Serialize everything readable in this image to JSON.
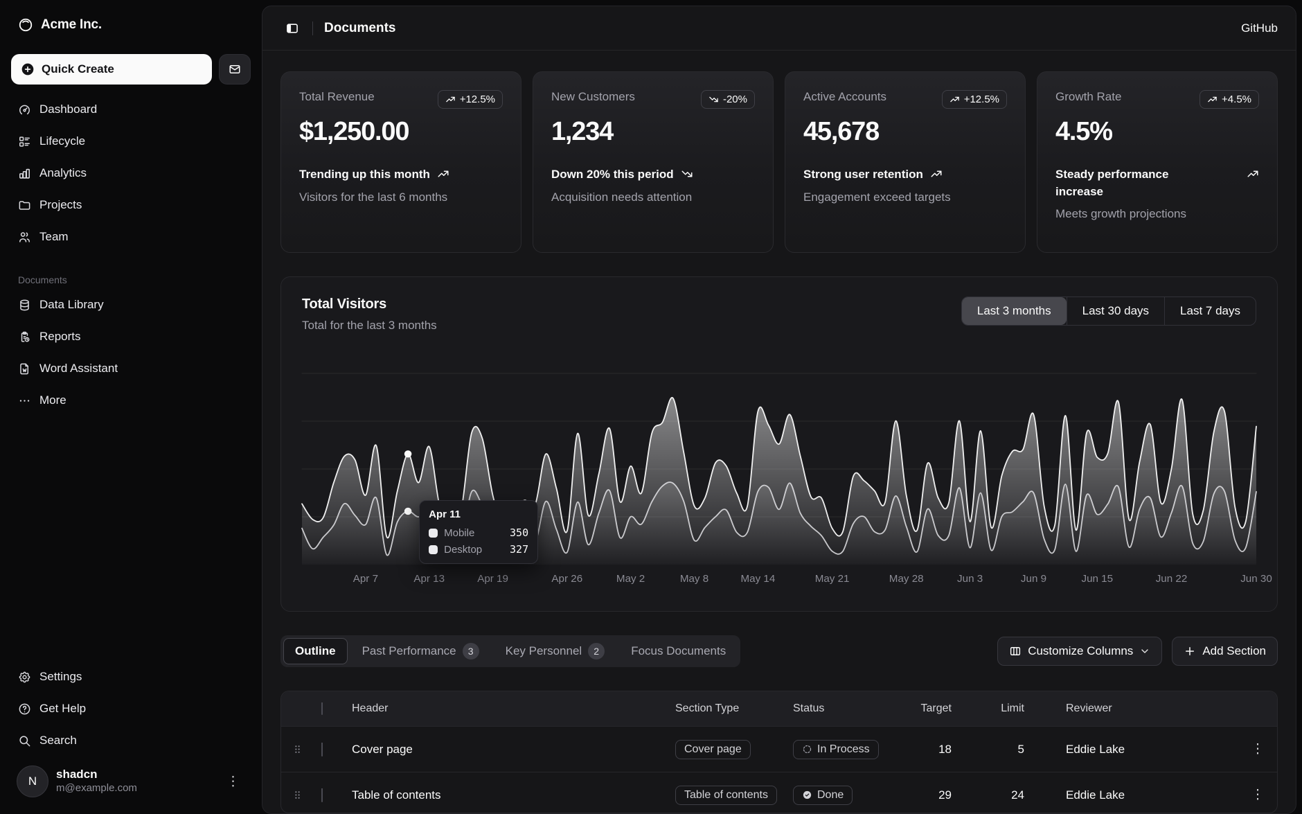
{
  "brand": {
    "name": "Acme Inc."
  },
  "sidebar": {
    "quick_create_label": "Quick Create",
    "nav": [
      {
        "label": "Dashboard"
      },
      {
        "label": "Lifecycle"
      },
      {
        "label": "Analytics"
      },
      {
        "label": "Projects"
      },
      {
        "label": "Team"
      }
    ],
    "section_label": "Documents",
    "documents_nav": [
      {
        "label": "Data Library"
      },
      {
        "label": "Reports"
      },
      {
        "label": "Word Assistant"
      },
      {
        "label": "More"
      }
    ],
    "secondary_nav": [
      {
        "label": "Settings"
      },
      {
        "label": "Get Help"
      },
      {
        "label": "Search"
      }
    ],
    "user": {
      "name": "shadcn",
      "email": "m@example.com",
      "initial": "N"
    }
  },
  "header": {
    "title": "Documents",
    "github_label": "GitHub"
  },
  "stats": [
    {
      "label": "Total Revenue",
      "value": "$1,250.00",
      "badge": "+12.5%",
      "trend": "up",
      "footer_title": "Trending up this month",
      "footer_sub": "Visitors for the last 6 months"
    },
    {
      "label": "New Customers",
      "value": "1,234",
      "badge": "-20%",
      "trend": "down",
      "footer_title": "Down 20% this period",
      "footer_sub": "Acquisition needs attention"
    },
    {
      "label": "Active Accounts",
      "value": "45,678",
      "badge": "+12.5%",
      "trend": "up",
      "footer_title": "Strong user retention",
      "footer_sub": "Engagement exceed targets"
    },
    {
      "label": "Growth Rate",
      "value": "4.5%",
      "badge": "+4.5%",
      "trend": "up",
      "footer_title": "Steady performance increase",
      "footer_sub": "Meets growth projections"
    }
  ],
  "chart": {
    "title": "Total Visitors",
    "subtitle": "Total for the last 3 months",
    "ranges": [
      {
        "label": "Last 3 months",
        "active": true
      },
      {
        "label": "Last 30 days",
        "active": false
      },
      {
        "label": "Last 7 days",
        "active": false
      }
    ],
    "tooltip": {
      "index": 10,
      "date": "Apr 11",
      "rows": [
        {
          "label": "Mobile",
          "value": "350"
        },
        {
          "label": "Desktop",
          "value": "327"
        }
      ]
    },
    "chart_data": {
      "type": "area",
      "stacked": true,
      "grid": "horizontal",
      "legend_position": "none",
      "x_range": [
        "Apr 1",
        "Jun 30"
      ],
      "ylim": [
        0,
        1200
      ],
      "ticks": [
        {
          "i": 6,
          "label": "Apr 7"
        },
        {
          "i": 12,
          "label": "Apr 13"
        },
        {
          "i": 18,
          "label": "Apr 19"
        },
        {
          "i": 25,
          "label": "Apr 26"
        },
        {
          "i": 31,
          "label": "May 2"
        },
        {
          "i": 37,
          "label": "May 8"
        },
        {
          "i": 43,
          "label": "May 14"
        },
        {
          "i": 50,
          "label": "May 21"
        },
        {
          "i": 57,
          "label": "May 28"
        },
        {
          "i": 63,
          "label": "Jun 3"
        },
        {
          "i": 69,
          "label": "Jun 9"
        },
        {
          "i": 75,
          "label": "Jun 15"
        },
        {
          "i": 82,
          "label": "Jun 22"
        },
        {
          "i": 90,
          "label": "Jun 30"
        }
      ],
      "series": [
        {
          "name": "Mobile",
          "values": [
            150,
            180,
            120,
            260,
            290,
            340,
            180,
            320,
            110,
            190,
            350,
            210,
            380,
            220,
            170,
            190,
            360,
            410,
            180,
            150,
            200,
            170,
            230,
            290,
            250,
            130,
            420,
            180,
            240,
            380,
            220,
            310,
            190,
            420,
            390,
            520,
            300,
            210,
            180,
            330,
            270,
            240,
            160,
            490,
            380,
            400,
            420,
            350,
            180,
            230,
            140,
            120,
            290,
            220,
            250,
            170,
            460,
            190,
            130,
            280,
            230,
            200,
            410,
            160,
            380,
            140,
            250,
            370,
            320,
            480,
            200,
            150,
            420,
            130,
            380,
            350,
            310,
            520,
            170,
            290,
            450,
            210,
            270,
            530,
            180,
            190,
            380,
            490,
            200,
            160,
            400
          ]
        },
        {
          "name": "Desktop",
          "values": [
            222,
            97,
            167,
            242,
            373,
            301,
            245,
            409,
            59,
            261,
            327,
            292,
            342,
            137,
            120,
            138,
            446,
            364,
            243,
            89,
            137,
            224,
            138,
            387,
            215,
            75,
            383,
            122,
            315,
            454,
            165,
            293,
            247,
            385,
            481,
            498,
            388,
            149,
            227,
            293,
            335,
            197,
            197,
            448,
            473,
            338,
            499,
            315,
            235,
            177,
            82,
            81,
            252,
            294,
            201,
            213,
            420,
            233,
            78,
            340,
            178,
            178,
            470,
            103,
            439,
            88,
            294,
            323,
            385,
            438,
            155,
            92,
            492,
            81,
            426,
            307,
            371,
            475,
            107,
            341,
            408,
            169,
            317,
            480,
            132,
            141,
            434,
            448,
            149,
            103,
            446
          ]
        }
      ]
    }
  },
  "section_tabs": {
    "tabs": [
      {
        "label": "Outline",
        "active": true
      },
      {
        "label": "Past Performance",
        "badge": "3"
      },
      {
        "label": "Key Personnel",
        "badge": "2"
      },
      {
        "label": "Focus Documents"
      }
    ],
    "customize_label": "Customize Columns",
    "add_label": "Add Section"
  },
  "table": {
    "columns": {
      "header": "Header",
      "type": "Section Type",
      "status": "Status",
      "target": "Target",
      "limit": "Limit",
      "reviewer": "Reviewer"
    },
    "rows": [
      {
        "header": "Cover page",
        "type": "Cover page",
        "status": "In Process",
        "status_kind": "in-process",
        "target": "18",
        "limit": "5",
        "reviewer": "Eddie Lake"
      },
      {
        "header": "Table of contents",
        "type": "Table of contents",
        "status": "Done",
        "status_kind": "done",
        "target": "29",
        "limit": "24",
        "reviewer": "Eddie Lake"
      }
    ]
  }
}
